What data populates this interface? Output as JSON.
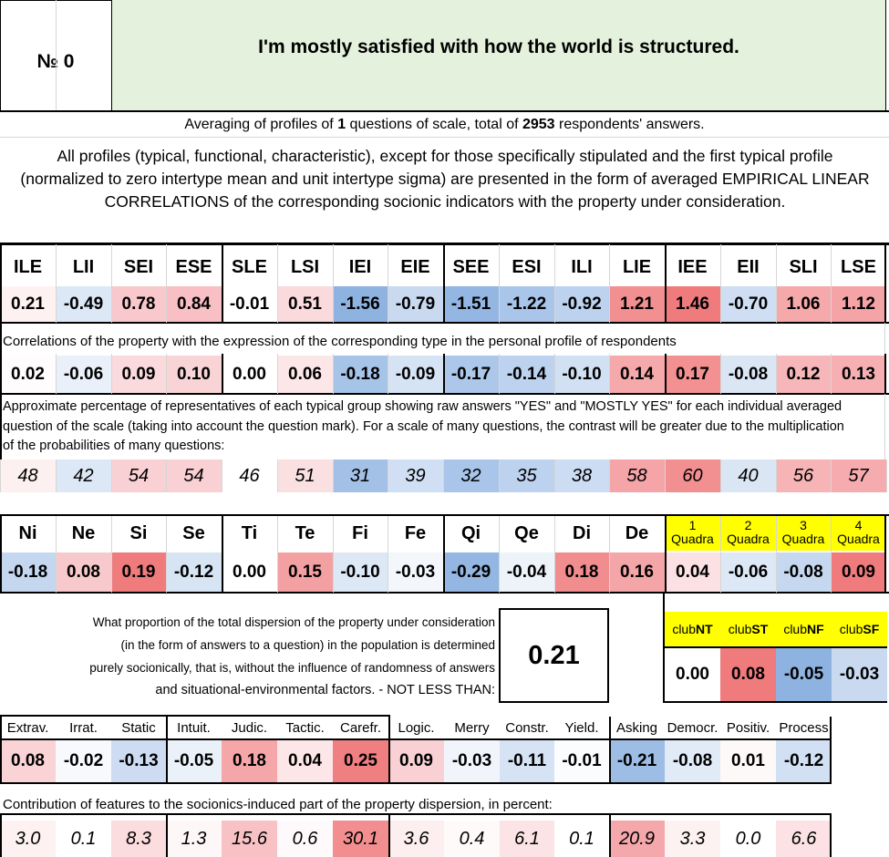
{
  "header": {
    "number_label": "№",
    "number_value": "0",
    "question": "I'm mostly satisfied with how the world is structured."
  },
  "averaging": {
    "prefix": "Averaging of profiles of ",
    "count": "1",
    "middle": " questions of scale, total of ",
    "respondents": "2953",
    "suffix": " respondents' answers."
  },
  "description": "All profiles (typical, functional, characteristic), except for those specifically stipulated and the first typical profile (normalized to zero intertype mean and unit intertype sigma) are presented in the form of averaged EMPIRICAL LINEAR CORRELATIONS of the corresponding socionic indicators with the property under consideration.",
  "types": {
    "labels": [
      "ILE",
      "LII",
      "SEI",
      "ESE",
      "SLE",
      "LSI",
      "IEI",
      "EIE",
      "SEE",
      "ESI",
      "ILI",
      "LIE",
      "IEE",
      "EII",
      "SLI",
      "LSE"
    ],
    "profile": [
      "0.21",
      "-0.49",
      "0.78",
      "0.84",
      "-0.01",
      "0.51",
      "-1.56",
      "-0.79",
      "-1.51",
      "-1.22",
      "-0.92",
      "1.21",
      "1.46",
      "-0.70",
      "1.06",
      "1.12"
    ],
    "profile_colors": [
      "#fdf1f2",
      "#dde8f6",
      "#f9c8cc",
      "#f8c0c4",
      "#ffffff",
      "#fadadd",
      "#8eb3e1",
      "#c8d9f0",
      "#93b6e2",
      "#a9c5e9",
      "#bcd2ee",
      "#f28f91",
      "#ef7b7d",
      "#cfdef2",
      "#f5a9ab",
      "#f4a3a6"
    ],
    "corr_caption": "Correlations of the property with the expression of the corresponding type in the personal profile of respondents",
    "corr": [
      "0.02",
      "-0.06",
      "0.09",
      "0.10",
      "0.00",
      "0.06",
      "-0.18",
      "-0.09",
      "-0.17",
      "-0.14",
      "-0.10",
      "0.14",
      "0.17",
      "-0.08",
      "0.12",
      "0.13"
    ],
    "corr_colors": [
      "#fefcfc",
      "#e9f0f9",
      "#fadadd",
      "#f9d4d7",
      "#ffffff",
      "#fce6e8",
      "#a6c3e8",
      "#d6e3f4",
      "#acc7e9",
      "#bcd2ee",
      "#d2e0f3",
      "#f5a9ab",
      "#f29092",
      "#dbe6f5",
      "#f7b6b9",
      "#f6b0b3"
    ],
    "pct_caption": "Approximate percentage of representatives of each typical group showing raw answers \"YES\" and \"MOSTLY YES\" for each individual averaged question of the scale (taking into account the question mark). For a scale of many questions, the contrast will be greater due to the multiplication of the probabilities of many questions:",
    "pct": [
      "48",
      "42",
      "54",
      "54",
      "46",
      "51",
      "31",
      "39",
      "32",
      "35",
      "38",
      "58",
      "60",
      "40",
      "56",
      "57"
    ],
    "pct_colors": [
      "#fdf0f1",
      "#dde8f6",
      "#f9d0d3",
      "#f9d0d3",
      "#ffffff",
      "#fbe0e2",
      "#a3c0e7",
      "#d0dff3",
      "#a9c5e9",
      "#bdd2ee",
      "#ccdcf2",
      "#f5a4a7",
      "#f28f91",
      "#dbe6f5",
      "#f7b4b7",
      "#f6acaf"
    ]
  },
  "functions": {
    "labels": [
      "Ni",
      "Ne",
      "Si",
      "Se",
      "Ti",
      "Te",
      "Fi",
      "Fe",
      "Qi",
      "Qe",
      "Di",
      "De"
    ],
    "values": [
      "-0.18",
      "0.08",
      "0.19",
      "-0.12",
      "0.00",
      "0.15",
      "-0.10",
      "-0.03",
      "-0.29",
      "-0.04",
      "0.18",
      "0.16"
    ],
    "colors": [
      "#c4d7ef",
      "#f8c9cc",
      "#ef7b7d",
      "#d7e4f4",
      "#ffffff",
      "#f3a0a2",
      "#dde8f6",
      "#f3f7fc",
      "#93b6e2",
      "#eef3fa",
      "#f18c8f",
      "#f4a5a8"
    ],
    "quadra_labels": [
      {
        "n": "1",
        "t": "Quadra"
      },
      {
        "n": "2",
        "t": "Quadra"
      },
      {
        "n": "3",
        "t": "Quadra"
      },
      {
        "n": "4",
        "t": "Quadra"
      }
    ],
    "quadra_values": [
      "0.04",
      "-0.06",
      "-0.08",
      "0.09"
    ],
    "quadra_colors": [
      "#fbe1e3",
      "#dde8f6",
      "#c6d8f0",
      "#ef7b7d"
    ]
  },
  "dispersion": {
    "lines": [
      "What proportion of the total dispersion of the property under consideration",
      "(in the form of answers to a question) in the population is determined",
      "purely socionically, that is, without the influence of randomness of answers",
      "and situational-environmental factors. - NOT LESS THAN:"
    ],
    "value": "0.21",
    "value_color": "#ffff00"
  },
  "clubs": {
    "labels": [
      {
        "pre": "club",
        "bold": "NT"
      },
      {
        "pre": "club",
        "bold": "ST"
      },
      {
        "pre": "club",
        "bold": "NF"
      },
      {
        "pre": "club",
        "bold": "SF"
      }
    ],
    "values": [
      "0.00",
      "0.08",
      "-0.05",
      "-0.03"
    ],
    "colors": [
      "#ffffff",
      "#ef7b7d",
      "#8eb3e1",
      "#c9daf0"
    ]
  },
  "traits": {
    "labels": [
      "Extrav.",
      "Irrat.",
      "Static",
      "Intuit.",
      "Judic.",
      "Tactic.",
      "Carefr.",
      "Logic.",
      "Merry",
      "Constr.",
      "Yield.",
      "Asking",
      "Democr.",
      "Positiv.",
      "Process"
    ],
    "values": [
      "0.08",
      "-0.02",
      "-0.13",
      "-0.05",
      "0.18",
      "0.04",
      "0.25",
      "0.09",
      "-0.03",
      "-0.11",
      "-0.01",
      "-0.21",
      "-0.08",
      "0.01",
      "-0.12"
    ],
    "colors": [
      "#f9d3d6",
      "#f7f9fd",
      "#cddcf2",
      "#ebf1f9",
      "#f5a6a9",
      "#fce6e8",
      "#f07f82",
      "#f9d0d3",
      "#f1f5fb",
      "#d6e3f4",
      "#fbfcfe",
      "#9dbde5",
      "#e1eaf7",
      "#fef9f9",
      "#d2e0f3"
    ],
    "contrib_caption": "Contribution of features to the socionics-induced part of the property dispersion, in percent:",
    "contrib": [
      "3.0",
      "0.1",
      "8.3",
      "1.3",
      "15.6",
      "0.6",
      "30.1",
      "3.6",
      "0.4",
      "6.1",
      "0.1",
      "20.9",
      "3.3",
      "0.0",
      "6.6"
    ],
    "contrib_colors": [
      "#fdf1f2",
      "#ffffff",
      "#fbdcdf",
      "#fef7f7",
      "#f8c2c5",
      "#fefafb",
      "#f28e90",
      "#fdefef",
      "#fefafa",
      "#fce3e5",
      "#ffffff",
      "#f5a8ab",
      "#fdf2f2",
      "#ffffff",
      "#fce2e4"
    ]
  }
}
